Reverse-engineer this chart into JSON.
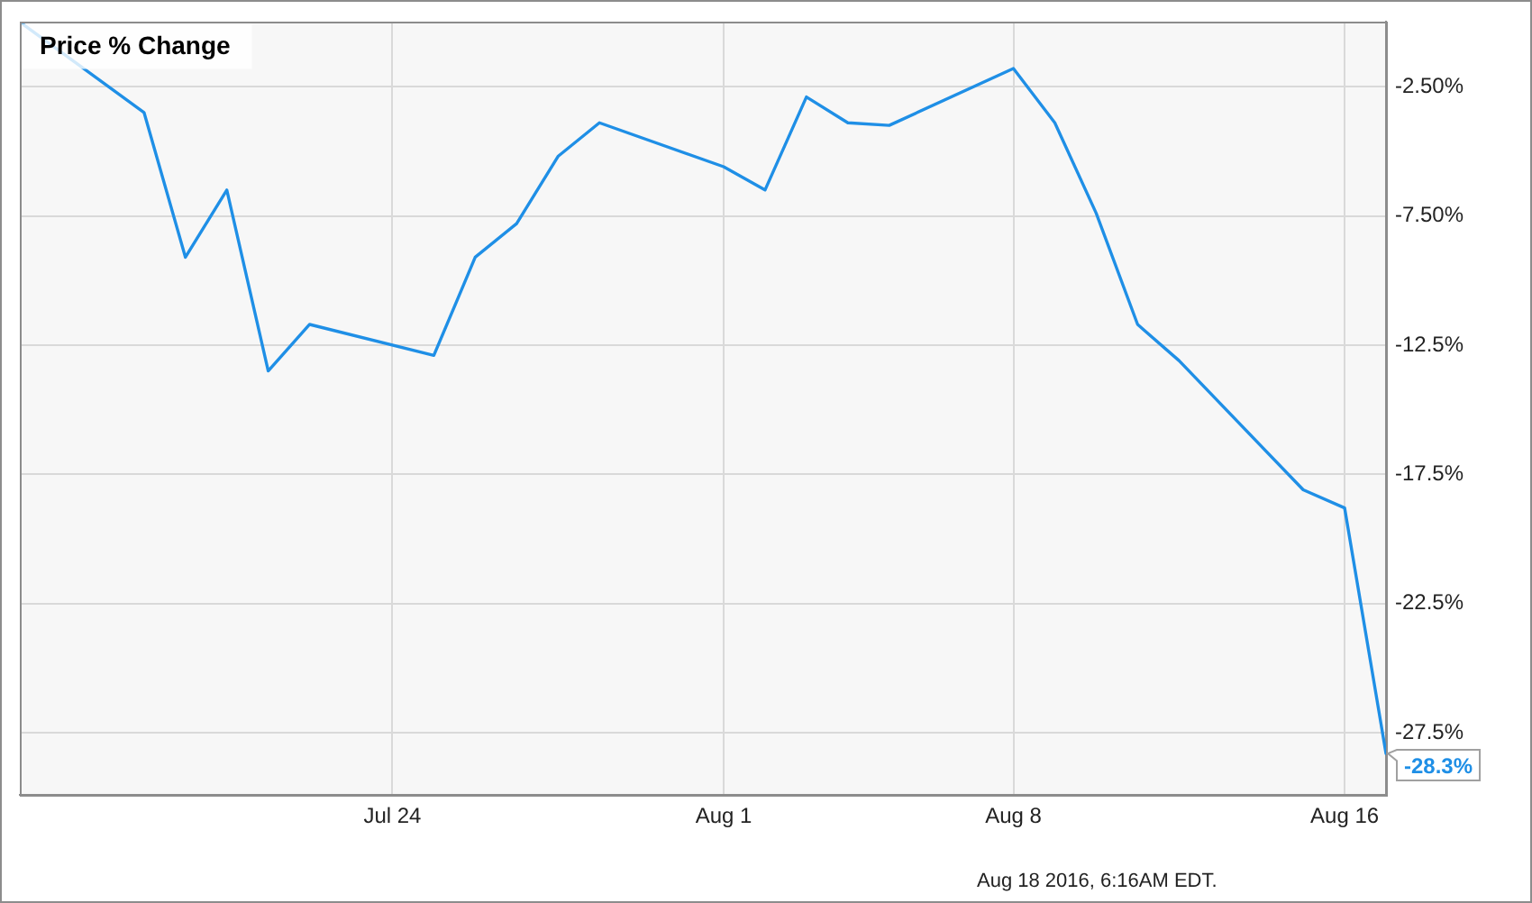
{
  "chart_data": {
    "type": "line",
    "title": "Price % Change",
    "x": [
      "2016-07-15",
      "2016-07-18",
      "2016-07-19",
      "2016-07-20",
      "2016-07-21",
      "2016-07-22",
      "2016-07-25",
      "2016-07-26",
      "2016-07-27",
      "2016-07-28",
      "2016-07-29",
      "2016-08-01",
      "2016-08-02",
      "2016-08-03",
      "2016-08-04",
      "2016-08-05",
      "2016-08-08",
      "2016-08-09",
      "2016-08-10",
      "2016-08-11",
      "2016-08-12",
      "2016-08-15",
      "2016-08-16",
      "2016-08-17"
    ],
    "series": [
      {
        "color": "#1f8fe6",
        "values": [
          0,
          -3.5,
          -9.1,
          -6.5,
          -13.5,
          -11.7,
          -12.9,
          -9.1,
          -7.8,
          -5.2,
          -3.9,
          -5.6,
          -6.5,
          -2.9,
          -3.9,
          -4.0,
          -1.8,
          -3.9,
          -7.4,
          -11.7,
          -13.1,
          -18.1,
          -18.8,
          -28.3
        ],
        "value_labels": [
          null,
          null,
          null,
          null,
          null,
          null,
          null,
          null,
          null,
          null,
          null,
          null,
          null,
          null,
          null,
          null,
          null,
          null,
          null,
          null,
          null,
          null,
          null,
          "-28.3%"
        ]
      }
    ],
    "xlim": [
      "2016-07-15",
      "2016-08-17"
    ],
    "xticks": [
      {
        "value": "2016-07-24",
        "label": "Jul 24"
      },
      {
        "value": "2016-08-01",
        "label": "Aug 1"
      },
      {
        "value": "2016-08-08",
        "label": "Aug 8"
      },
      {
        "value": "2016-08-16",
        "label": "Aug 16"
      }
    ],
    "ylim": [
      -29.9,
      0
    ],
    "yticks": [
      {
        "value": -2.5,
        "label": "-2.50%"
      },
      {
        "value": -7.5,
        "label": "-7.50%"
      },
      {
        "value": -12.5,
        "label": "-12.5%"
      },
      {
        "value": -17.5,
        "label": "-17.5%"
      },
      {
        "value": -22.5,
        "label": "-22.5%"
      },
      {
        "value": -27.5,
        "label": "-27.5%"
      }
    ],
    "grid": true,
    "marker": "none",
    "line_style": "solid",
    "legend": false,
    "annotations": [
      "Aug 18 2016, 6:16AM EDT."
    ]
  }
}
